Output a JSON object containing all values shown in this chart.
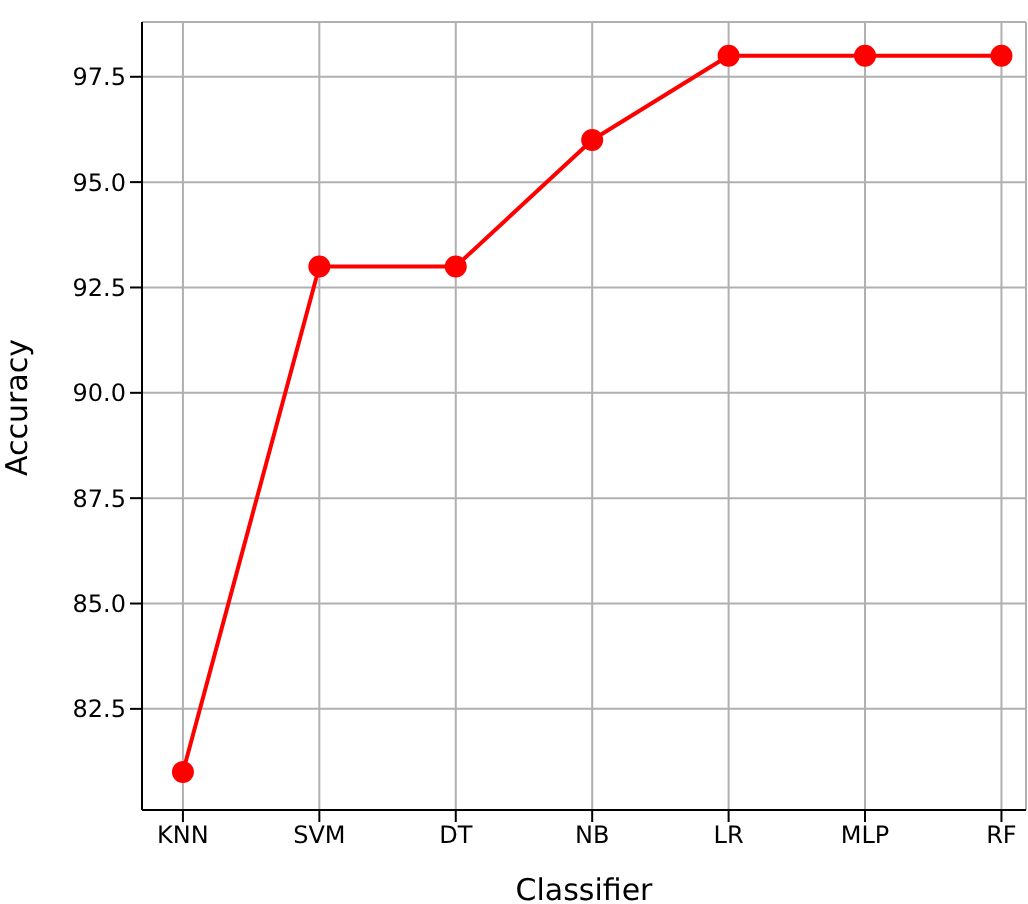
{
  "chart_data": {
    "type": "line",
    "xlabel": "Classifier",
    "ylabel": "Accuracy",
    "categories": [
      "KNN",
      "SVM",
      "DT",
      "NB",
      "LR",
      "MLP",
      "RF"
    ],
    "series": [
      {
        "color": "#ff0000",
        "values": [
          81,
          93,
          93,
          96,
          98,
          98,
          98
        ]
      }
    ],
    "ylim": [
      80.1,
      98.8
    ],
    "yticks": [
      82.5,
      {
        "value": 85,
        "label": "85.0"
      },
      87.5,
      {
        "value": 90,
        "label": "90.0"
      },
      92.5,
      {
        "value": 95,
        "label": "95.0"
      },
      97.5
    ],
    "grid": true,
    "marker": "circle",
    "line_style": "solid"
  }
}
